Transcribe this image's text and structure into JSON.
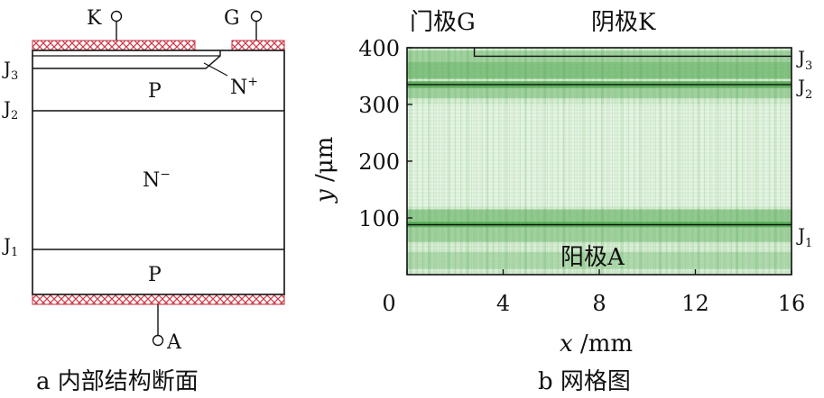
{
  "left": {
    "terminals": {
      "k": "K",
      "g": "G",
      "a": "A"
    },
    "junctions": {
      "j3": "J",
      "j3_sub": "3",
      "j2": "J",
      "j2_sub": "2",
      "j1": "J",
      "j1_sub": "1"
    },
    "regions": {
      "p_top": "P",
      "n_minus": "N",
      "n_minus_sup": "−",
      "p_bottom": "P",
      "n_plus": "N",
      "n_plus_sup": "+"
    },
    "caption": "a  内部结构断面"
  },
  "right": {
    "top_labels": {
      "gate": "门极G",
      "cathode": "阴极K"
    },
    "anode_label": "阳极A",
    "junctions": {
      "j3": "J",
      "j3_sub": "3",
      "j2": "J",
      "j2_sub": "2",
      "j1": "J",
      "j1_sub": "1"
    },
    "caption": "b  网格图",
    "xlabel_var": "x",
    "xlabel_unit": " /mm",
    "ylabel_var": "y",
    "ylabel_unit": " /μm"
  },
  "chart_data": {
    "type": "heatmap",
    "x_ticks": [
      0,
      4,
      8,
      12,
      16
    ],
    "y_ticks": [
      100,
      200,
      300,
      400
    ],
    "xlim": [
      0,
      16
    ],
    "ylim": [
      0,
      400
    ],
    "junction_lines_um": {
      "j3": 385,
      "j2": 335,
      "j1": 88
    },
    "cathode_start_mm": 2.8,
    "grid_color": "#3a9a3a",
    "grid": false,
    "legend": "none"
  }
}
